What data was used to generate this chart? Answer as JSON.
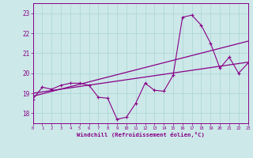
{
  "x_data": [
    0,
    1,
    2,
    3,
    4,
    5,
    6,
    7,
    8,
    9,
    10,
    11,
    12,
    13,
    14,
    15,
    16,
    17,
    18,
    19,
    20,
    21,
    22,
    23
  ],
  "y_main": [
    18.7,
    19.3,
    19.2,
    19.4,
    19.5,
    19.5,
    19.4,
    18.8,
    18.75,
    17.7,
    17.8,
    18.5,
    19.5,
    19.15,
    19.1,
    19.9,
    22.8,
    22.9,
    22.4,
    21.5,
    20.25,
    20.8,
    20.0,
    20.5
  ],
  "y_line1_start": 19.0,
  "y_line1_end": 20.55,
  "y_line2_start": 18.85,
  "y_line2_end": 21.6,
  "line_color": "#880088",
  "bg_color": "#cce8e8",
  "grid_color": "#aad4d4",
  "xlabel": "Windchill (Refroidissement éolien,°C)",
  "xlim": [
    0,
    23
  ],
  "ylim": [
    17.5,
    23.5
  ],
  "yticks": [
    18,
    19,
    20,
    21,
    22,
    23
  ],
  "xticks": [
    0,
    1,
    2,
    3,
    4,
    5,
    6,
    7,
    8,
    9,
    10,
    11,
    12,
    13,
    14,
    15,
    16,
    17,
    18,
    19,
    20,
    21,
    22,
    23
  ]
}
